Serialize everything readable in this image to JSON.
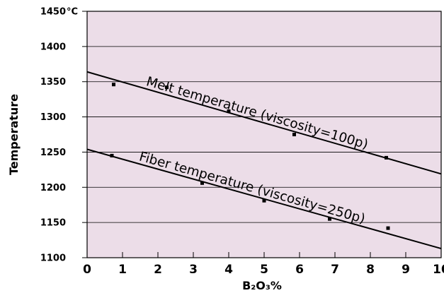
{
  "chart_data": {
    "type": "line",
    "xlabel": "B₂O₃%",
    "ylabel": "Temperature",
    "xlim": [
      0,
      10
    ],
    "ylim": [
      1100,
      1450
    ],
    "x_ticks": [
      "0",
      "1",
      "2",
      "3",
      "4",
      "5",
      "6",
      "7",
      "8",
      "9",
      "10"
    ],
    "y_ticks": [
      "1100",
      "1150",
      "1200",
      "1250",
      "1300",
      "1350",
      "1400",
      "1450"
    ],
    "y_top_unit": "°C",
    "grid": "horizontal",
    "background_color": "#ecdde8",
    "line_color": "#000000",
    "series": [
      {
        "name": "Melt temperature (viscosity=100p)",
        "line": [
          [
            0,
            1364
          ],
          [
            10,
            1219
          ]
        ],
        "points": [
          [
            0.75,
            1346
          ],
          [
            2.25,
            1342
          ],
          [
            4.0,
            1308
          ],
          [
            5.85,
            1275
          ],
          [
            8.45,
            1242
          ]
        ]
      },
      {
        "name": "Fiber temperature (viscosity=250p)",
        "line": [
          [
            0,
            1254
          ],
          [
            10,
            1113
          ]
        ],
        "points": [
          [
            0.7,
            1245
          ],
          [
            3.25,
            1206
          ],
          [
            5.0,
            1181
          ],
          [
            6.85,
            1155
          ],
          [
            8.5,
            1142
          ]
        ]
      }
    ]
  }
}
